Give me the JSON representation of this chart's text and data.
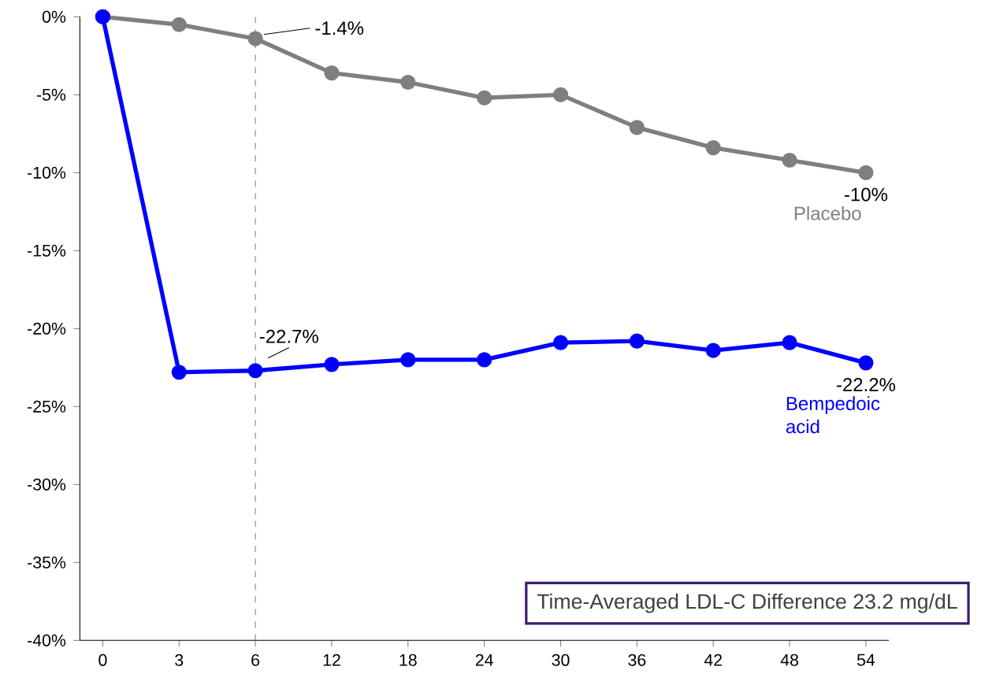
{
  "chart_data": {
    "type": "line",
    "categories": [
      "0",
      "3",
      "6",
      "12",
      "18",
      "24",
      "30",
      "36",
      "42",
      "48",
      "54"
    ],
    "series": [
      {
        "name": "Placebo",
        "color": "#7f7f7f",
        "values": [
          0,
          -0.5,
          -1.4,
          -3.6,
          -4.2,
          -5.2,
          -5.0,
          -7.1,
          -8.4,
          -9.2,
          -10
        ]
      },
      {
        "name": "Bempedoic acid",
        "color": "#0000ff",
        "values": [
          0,
          -22.8,
          -22.7,
          -22.3,
          -22.0,
          -22.0,
          -20.9,
          -20.8,
          -21.4,
          -20.9,
          -22.2
        ]
      }
    ],
    "ylim": [
      -40,
      0
    ],
    "yticks": [
      {
        "value": 0,
        "label": "0%"
      },
      {
        "value": -5,
        "label": "-5%"
      },
      {
        "value": -10,
        "label": "-10%"
      },
      {
        "value": -15,
        "label": "-15%"
      },
      {
        "value": -20,
        "label": "-20%"
      },
      {
        "value": -25,
        "label": "-25%"
      },
      {
        "value": -30,
        "label": "-30%"
      },
      {
        "value": -35,
        "label": "-35%"
      },
      {
        "value": -40,
        "label": "-40%"
      }
    ],
    "ref_lines": [
      {
        "axis": "x",
        "value": "6",
        "line_style": "dashed",
        "color": "#808080"
      }
    ],
    "annotations": [
      {
        "text": "-1.4%",
        "x": "6",
        "y": -1.4
      },
      {
        "text": "-22.7%",
        "x": "6",
        "y": -22.7
      },
      {
        "text": "-10%",
        "x": "54",
        "y": -10
      },
      {
        "text": "-22.2%",
        "x": "54",
        "y": -22.2
      },
      "Time-Averaged LDL-C Difference 23.2 mg/dL"
    ],
    "marker": "circle",
    "line_style": "solid",
    "grid": false,
    "legend": false
  }
}
